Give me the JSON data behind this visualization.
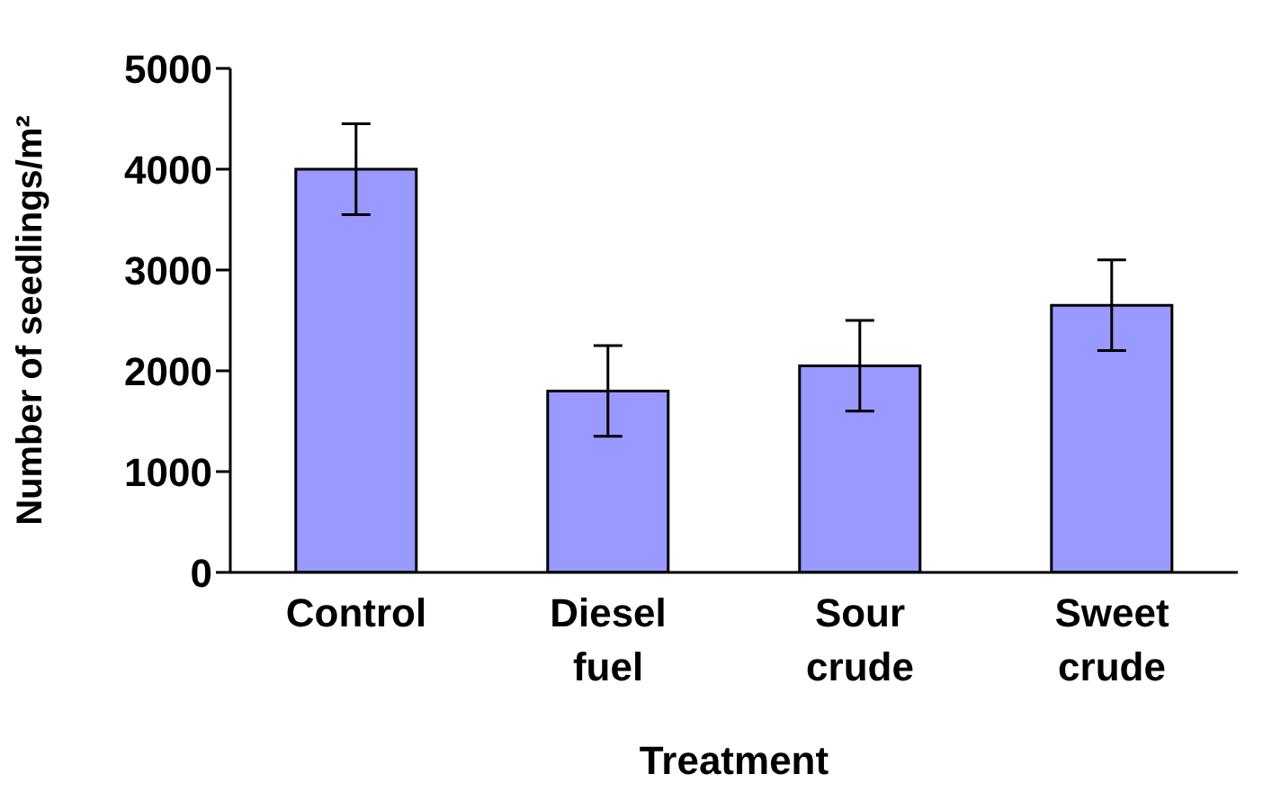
{
  "chart_data": {
    "type": "bar",
    "xlabel": "Treatment",
    "ylabel": "Number of seedlings/m²",
    "categories": [
      "Control",
      "Diesel fuel",
      "Sour crude",
      "Sweet crude"
    ],
    "values": [
      4000,
      1800,
      2050,
      2650
    ],
    "errors": [
      450,
      450,
      450,
      450
    ],
    "color": "#9999ff",
    "ylim": [
      0,
      5000
    ],
    "yticks": [
      0,
      1000,
      2000,
      3000,
      4000,
      5000
    ],
    "grid": false,
    "legend": false
  }
}
